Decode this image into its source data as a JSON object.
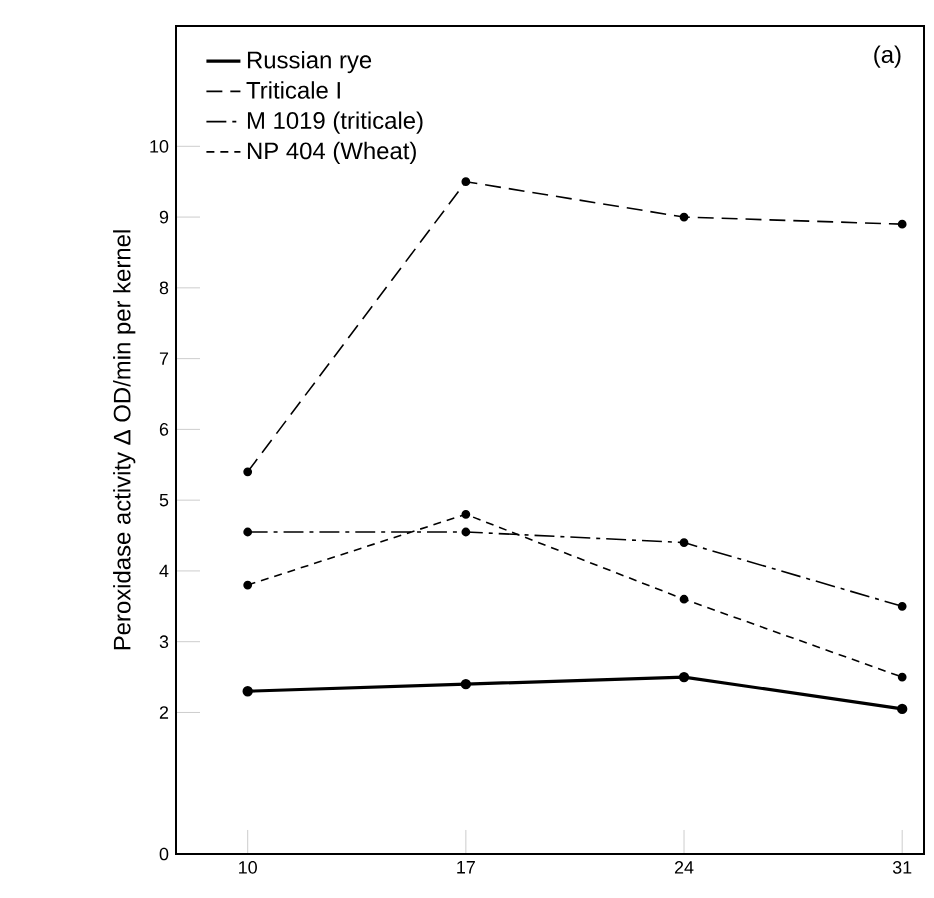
{
  "chart_data": {
    "type": "line",
    "ylabel": "Peroxidase activity  Δ OD/min per kernel",
    "annotations": [
      "(a)"
    ],
    "x": [
      10,
      17,
      24,
      31
    ],
    "xlim": [
      7.7,
      31.7
    ],
    "xticks": [
      10,
      17,
      24,
      31
    ],
    "ylim": [
      0,
      11.7
    ],
    "yticks": [
      0,
      2,
      3,
      4,
      5,
      6,
      7,
      8,
      9,
      10
    ],
    "marker": "circle",
    "legend": "top left",
    "grid": false,
    "series": [
      {
        "name": "Russian rye",
        "color": "#000000",
        "line_style": "solid",
        "values": [
          2.3,
          2.4,
          2.5,
          2.05
        ]
      },
      {
        "name": "Triticale I",
        "color": "#000000",
        "line_style": "dashed",
        "values": [
          5.4,
          9.5,
          9.0,
          8.9
        ]
      },
      {
        "name": "M 1019 (triticale)",
        "color": "#000000",
        "line_style": "dashdot",
        "values": [
          4.55,
          4.55,
          4.4,
          3.5
        ]
      },
      {
        "name": "NP 404 (Wheat)",
        "color": "#000000",
        "line_style": "shortdashed",
        "values": [
          3.8,
          4.8,
          3.6,
          2.5
        ]
      }
    ]
  }
}
